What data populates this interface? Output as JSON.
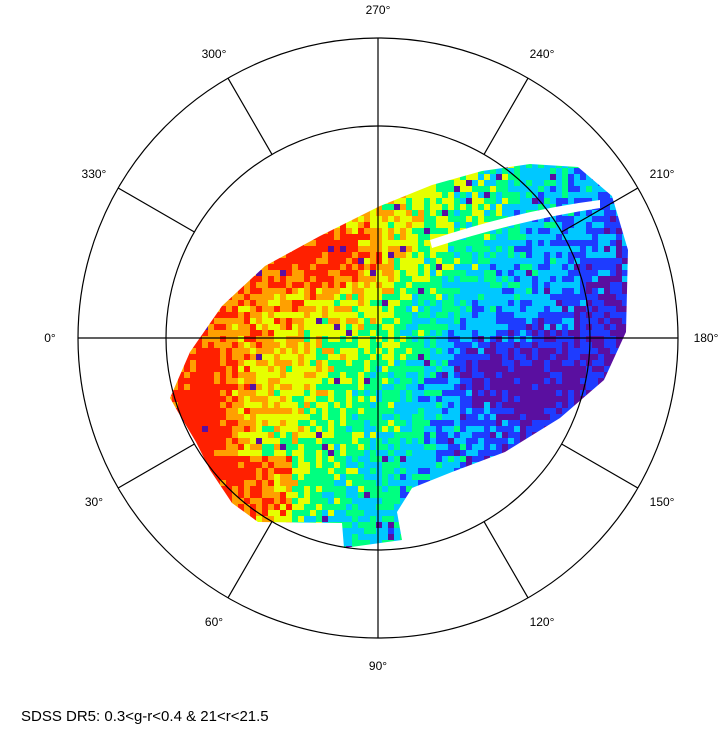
{
  "caption": "SDSS DR5: 0.3<g-r<0.4 & 21<r<21.5",
  "chart_data": {
    "type": "heatmap",
    "title": "",
    "projection": "polar",
    "angular_axis": {
      "direction": "clockwise",
      "zero_position": "left",
      "tick_labels": [
        {
          "angle": 0,
          "label": "0°"
        },
        {
          "angle": 30,
          "label": "30°"
        },
        {
          "angle": 60,
          "label": "60°"
        },
        {
          "angle": 90,
          "label": "90°"
        },
        {
          "angle": 120,
          "label": "120°"
        },
        {
          "angle": 150,
          "label": "150°"
        },
        {
          "angle": 180,
          "label": "180°"
        },
        {
          "angle": 210,
          "label": "210°"
        },
        {
          "angle": 240,
          "label": "240°"
        },
        {
          "angle": 270,
          "label": "270°"
        },
        {
          "angle": 300,
          "label": "300°"
        },
        {
          "angle": 330,
          "label": "330°"
        }
      ]
    },
    "radial_grid_circles": 2,
    "colormap": [
      "#5a0fa0",
      "#1e3cff",
      "#00c8ff",
      "#00ff80",
      "#e6ff00",
      "#ffa000",
      "#ff2000"
    ],
    "survey_footprint": "elongated oval of binned cells tilted across the center",
    "density_trend": [
      {
        "region": "angles 300-330 outer rim",
        "level": "high",
        "color": "#ff3a10"
      },
      {
        "region": "angles 0-45 outer edge",
        "level": "high",
        "color": "#ff2a00"
      },
      {
        "region": "center",
        "level": "medium",
        "color": "#7ff040"
      },
      {
        "region": "angles 120-180",
        "level": "low",
        "color": "#2a4cf0"
      },
      {
        "region": "angles 210-240",
        "level": "medium-low",
        "color": "#30e0c0"
      }
    ]
  }
}
